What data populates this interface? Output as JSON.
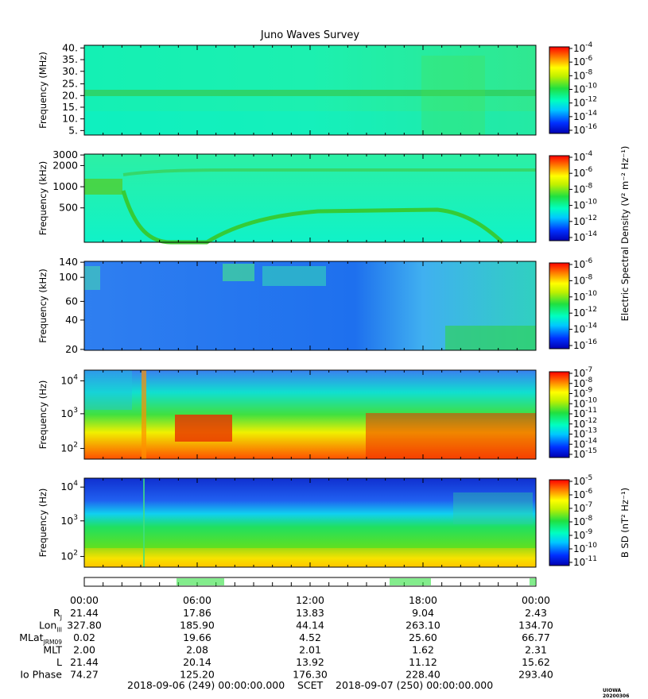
{
  "title": "Juno Waves Survey",
  "colors": {
    "frame": "#000000",
    "background": "#ffffff"
  },
  "chart_data": [
    {
      "type": "heatmap",
      "ylabel": "Frequency (MHz)",
      "yticks": [
        "40.",
        "35.",
        "30.",
        "25.",
        "20.",
        "15.",
        "10.",
        "5."
      ],
      "ylim": [
        3.5,
        41
      ],
      "colorbar_ticks": [
        "10-4",
        "10-6",
        "10-8",
        "10-10",
        "10-12",
        "10-14",
        "10-16"
      ],
      "colorbar_range_exp": [
        -4,
        -16
      ],
      "colormap": "rainbow",
      "colorbar_label": ""
    },
    {
      "type": "heatmap",
      "ylabel": "Frequency (kHz)",
      "yticks": [
        "3000",
        "2000",
        "1000",
        "500"
      ],
      "yscale": "log",
      "colorbar_ticks": [
        "10-4",
        "10-6",
        "10-8",
        "10-10",
        "10-12",
        "10-14"
      ],
      "colorbar_range_exp": [
        -4,
        -14
      ],
      "colormap": "rainbow",
      "colorbar_label": ""
    },
    {
      "type": "heatmap",
      "ylabel": "Frequency (kHz)",
      "yticks": [
        "140",
        "100",
        "60",
        "40",
        "20"
      ],
      "yscale": "log",
      "colorbar_ticks": [
        "10-6",
        "10-8",
        "10-10",
        "10-12",
        "10-14",
        "10-16"
      ],
      "colorbar_range_exp": [
        -6,
        -16
      ],
      "colormap": "rainbow",
      "colorbar_label": "Electric Spectral Density (V² m⁻² Hz⁻¹)"
    },
    {
      "type": "heatmap",
      "ylabel": "Frequency (Hz)",
      "yticks": [
        "10⁴",
        "10³",
        "10²"
      ],
      "yscale": "log",
      "colorbar_ticks": [
        "10-7",
        "10-8",
        "10-9",
        "10-10",
        "10-11",
        "10-12",
        "10-13",
        "10-14",
        "10-15"
      ],
      "colorbar_range_exp": [
        -7,
        -15
      ],
      "colormap": "rainbow",
      "colorbar_label": ""
    },
    {
      "type": "heatmap",
      "ylabel": "Frequency (Hz)",
      "yticks": [
        "10⁴",
        "10³",
        "10²"
      ],
      "yscale": "log",
      "colorbar_ticks": [
        "10-5",
        "10-6",
        "10-7",
        "10-8",
        "10-9",
        "10-10",
        "10-11"
      ],
      "colorbar_range_exp": [
        -5,
        -11
      ],
      "colormap": "rainbow",
      "colorbar_label": "B SD (nT² Hz⁻¹)"
    }
  ],
  "time_ticks": [
    "00:00",
    "06:00",
    "12:00",
    "18:00",
    "00:00"
  ],
  "ephemeris": [
    {
      "label": "R",
      "sub": "J",
      "values": [
        "21.44",
        "17.86",
        "13.83",
        "9.04",
        "2.43"
      ]
    },
    {
      "label": "Lon",
      "sub": "III",
      "values": [
        "327.80",
        "185.90",
        "44.14",
        "263.10",
        "134.70"
      ]
    },
    {
      "label": "MLat",
      "sub": "JRM09",
      "values": [
        "0.02",
        "19.66",
        "4.52",
        "25.60",
        "66.77"
      ]
    },
    {
      "label": "MLT",
      "sub": "",
      "values": [
        "2.00",
        "2.08",
        "2.01",
        "1.62",
        "2.31"
      ]
    },
    {
      "label": "L",
      "sub": "",
      "values": [
        "21.44",
        "20.14",
        "13.92",
        "11.12",
        "15.62"
      ]
    },
    {
      "label": "Io Phase",
      "sub": "",
      "values": [
        "74.27",
        "125.20",
        "176.30",
        "228.40",
        "293.40"
      ]
    }
  ],
  "footer": {
    "start": "2018-09-06 (249) 00:00:00.000",
    "scet": "SCET",
    "end": "2018-09-07 (250) 00:00:00.000"
  },
  "watermark": "UIOWA 20200306"
}
